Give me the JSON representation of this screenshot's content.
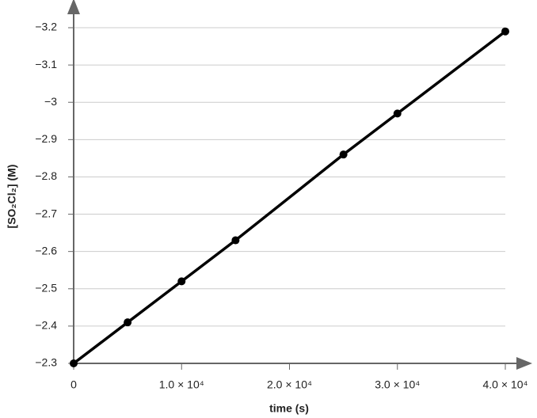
{
  "chart_data": {
    "type": "line",
    "x_label": "time (s)",
    "y_label": "[SO₂Cl₂] (M)",
    "x": [
      0,
      5000,
      10000,
      15000,
      25000,
      30000,
      40000
    ],
    "series": [
      {
        "color": "#000000",
        "values": [
          -2.3,
          -2.41,
          -2.52,
          -2.63,
          -2.86,
          -2.97,
          -3.19
        ]
      }
    ],
    "xlim": [
      0,
      40000
    ],
    "xticks": [
      0,
      {
        "value": 10000,
        "label": "1.0 × 10⁴"
      },
      {
        "value": 20000,
        "label": "2.0 × 10⁴"
      },
      {
        "value": 30000,
        "label": "3.0 × 10⁴"
      },
      {
        "value": 40000,
        "label": "4.0 × 10⁴"
      }
    ],
    "ylim": [
      -2.3,
      -3.2
    ],
    "yticks": [
      {
        "value": -2.3,
        "label": "−2.3"
      },
      {
        "value": -2.4,
        "label": "−2.4"
      },
      {
        "value": -2.5,
        "label": "−2.5"
      },
      {
        "value": -2.6,
        "label": "−2.6"
      },
      {
        "value": -2.7,
        "label": "−2.7"
      },
      {
        "value": -2.8,
        "label": "−2.8"
      },
      {
        "value": -2.9,
        "label": "−2.9"
      },
      {
        "value": -3,
        "label": "−3"
      },
      {
        "value": -3.1,
        "label": "−3.1"
      },
      {
        "value": -3.2,
        "label": "−3.2"
      }
    ],
    "grid": true
  }
}
